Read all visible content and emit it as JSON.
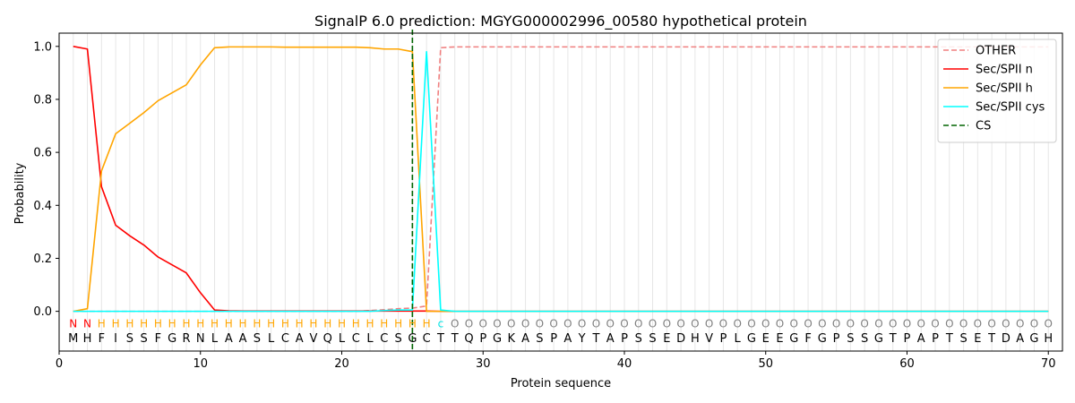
{
  "chart_data": {
    "type": "line",
    "title": "SignalP 6.0 prediction: MGYG000002996_00580 hypothetical protein",
    "xlabel": "Protein sequence",
    "ylabel": "Probability",
    "xlim": [
      0,
      71
    ],
    "ylim": [
      -0.15,
      1.05
    ],
    "xticks": [
      0,
      10,
      20,
      30,
      40,
      50,
      60,
      70
    ],
    "yticks": [
      0.0,
      0.2,
      0.4,
      0.6,
      0.8,
      1.0
    ],
    "ytick_labels": [
      "0.0",
      "0.2",
      "0.4",
      "0.6",
      "0.8",
      "1.0"
    ],
    "legend_position": "top-right",
    "sequence": "MHFISSFGRNLAASLCAVQLCLCSGCTTQPGKASPAYTAPSSEDHVPLGEEGFGPSSGTPAPTSETDAGH",
    "annotation": "NNHHHHHHHHHHHHHHHHHHHHHHHHcOOOOOOOOOOOOOOOOOOOOOOOOOOOOOOOOOOOOOOOOOOOO",
    "annotation_colors": {
      "N": "#ff0000",
      "H": "#ffa500",
      "c": "#00e5e5",
      "O": "#808080"
    },
    "cleavage_site": 25,
    "series": [
      {
        "name": "OTHER",
        "color": "#f08080",
        "dash": "dashed",
        "values": [
          0.0,
          0.0,
          0.0,
          0.0,
          0.0,
          0.0,
          0.0,
          0.0,
          0.0,
          0.0,
          0.0,
          0.0,
          0.0,
          0.0,
          0.0,
          0.0,
          0.0,
          0.0,
          0.0,
          0.0,
          0.0,
          0.003,
          0.006,
          0.01,
          0.012,
          0.02,
          0.995,
          0.998,
          0.998,
          0.998,
          0.998,
          0.998,
          0.998,
          0.998,
          0.998,
          0.998,
          0.998,
          0.998,
          0.998,
          0.998,
          0.998,
          0.998,
          0.998,
          0.998,
          0.998,
          0.998,
          0.998,
          0.998,
          0.998,
          0.998,
          0.998,
          0.998,
          0.998,
          0.998,
          0.998,
          0.998,
          0.998,
          0.998,
          0.998,
          0.998,
          0.998,
          0.998,
          0.998,
          0.998,
          0.998,
          0.998,
          0.998,
          0.998,
          0.998,
          0.998
        ]
      },
      {
        "name": "Sec/SPII n",
        "color": "#ff0000",
        "dash": "solid",
        "values": [
          1.0,
          0.99,
          0.47,
          0.325,
          0.285,
          0.25,
          0.205,
          0.175,
          0.145,
          0.07,
          0.005,
          0.002,
          0.001,
          0.001,
          0.001,
          0.001,
          0.001,
          0.001,
          0.001,
          0.001,
          0.001,
          0.001,
          0.001,
          0.001,
          0.001,
          0.001,
          0.0,
          0.0,
          0.0,
          0.0,
          0.0,
          0.0,
          0.0,
          0.0,
          0.0,
          0.0,
          0.0,
          0.0,
          0.0,
          0.0,
          0.0,
          0.0,
          0.0,
          0.0,
          0.0,
          0.0,
          0.0,
          0.0,
          0.0,
          0.0,
          0.0,
          0.0,
          0.0,
          0.0,
          0.0,
          0.0,
          0.0,
          0.0,
          0.0,
          0.0,
          0.0,
          0.0,
          0.0,
          0.0,
          0.0,
          0.0,
          0.0,
          0.0,
          0.0,
          0.0
        ]
      },
      {
        "name": "Sec/SPII h",
        "color": "#ffa500",
        "dash": "solid",
        "values": [
          0.0,
          0.01,
          0.53,
          0.67,
          0.71,
          0.75,
          0.795,
          0.825,
          0.855,
          0.93,
          0.995,
          0.998,
          0.998,
          0.998,
          0.998,
          0.997,
          0.997,
          0.997,
          0.997,
          0.997,
          0.997,
          0.995,
          0.99,
          0.99,
          0.98,
          0.0,
          0.0,
          0.0,
          0.0,
          0.0,
          0.0,
          0.0,
          0.0,
          0.0,
          0.0,
          0.0,
          0.0,
          0.0,
          0.0,
          0.0,
          0.0,
          0.0,
          0.0,
          0.0,
          0.0,
          0.0,
          0.0,
          0.0,
          0.0,
          0.0,
          0.0,
          0.0,
          0.0,
          0.0,
          0.0,
          0.0,
          0.0,
          0.0,
          0.0,
          0.0,
          0.0,
          0.0,
          0.0,
          0.0,
          0.0,
          0.0,
          0.0,
          0.0,
          0.0,
          0.0
        ]
      },
      {
        "name": "Sec/SPII cys",
        "color": "#00ffff",
        "dash": "solid",
        "values": [
          0.0,
          0.0,
          0.0,
          0.0,
          0.0,
          0.0,
          0.0,
          0.0,
          0.0,
          0.0,
          0.0,
          0.0,
          0.0,
          0.0,
          0.0,
          0.0,
          0.0,
          0.0,
          0.0,
          0.0,
          0.0,
          0.0,
          0.003,
          0.005,
          0.005,
          0.98,
          0.005,
          0.0,
          0.0,
          0.0,
          0.0,
          0.0,
          0.0,
          0.0,
          0.0,
          0.0,
          0.0,
          0.0,
          0.0,
          0.0,
          0.0,
          0.0,
          0.0,
          0.0,
          0.0,
          0.0,
          0.0,
          0.0,
          0.0,
          0.0,
          0.0,
          0.0,
          0.0,
          0.0,
          0.0,
          0.0,
          0.0,
          0.0,
          0.0,
          0.0,
          0.0,
          0.0,
          0.0,
          0.0,
          0.0,
          0.0,
          0.0,
          0.0,
          0.0,
          0.0
        ]
      }
    ],
    "cs_legend": {
      "name": "CS",
      "color": "#006400",
      "dash": "dashed"
    }
  }
}
